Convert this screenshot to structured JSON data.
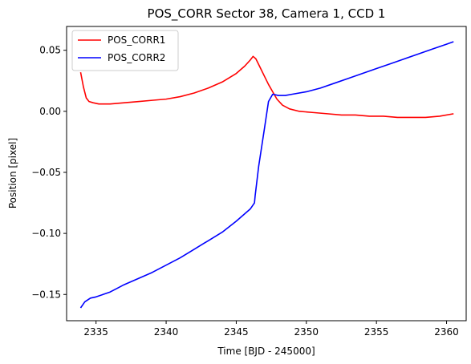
{
  "chart_data": {
    "type": "line",
    "title": "POS_CORR Sector 38, Camera 1, CCD 1",
    "xlabel": "Time [BJD - 245000]",
    "ylabel": "Position [pixel]",
    "xlim": [
      2332.9,
      2361.4
    ],
    "ylim": [
      -0.1715,
      0.0695
    ],
    "xticks": [
      2335,
      2340,
      2345,
      2350,
      2355,
      2360
    ],
    "yticks": [
      0.05,
      0.0,
      -0.05,
      -0.1,
      -0.15
    ],
    "ytick_labels": [
      "0.05",
      "0.00",
      "−0.05",
      "−0.10",
      "−0.15"
    ],
    "grid": false,
    "legend_position": "top-left",
    "series": [
      {
        "name": "POS_CORR1",
        "color": "#ff0000",
        "x": [
          2333.9,
          2334.1,
          2334.3,
          2334.5,
          2334.8,
          2335.2,
          2335.6,
          2336.0,
          2337.0,
          2338.0,
          2339.0,
          2340.0,
          2341.0,
          2342.0,
          2343.0,
          2344.0,
          2345.0,
          2345.6,
          2346.0,
          2346.2,
          2346.4,
          2346.7,
          2347.0,
          2347.3,
          2347.6,
          2347.9,
          2348.3,
          2348.8,
          2349.5,
          2350.5,
          2351.5,
          2352.5,
          2353.5,
          2354.5,
          2355.5,
          2356.5,
          2357.5,
          2358.5,
          2359.5,
          2360.5
        ],
        "y": [
          0.032,
          0.02,
          0.011,
          0.008,
          0.007,
          0.006,
          0.006,
          0.006,
          0.007,
          0.008,
          0.009,
          0.01,
          0.012,
          0.015,
          0.019,
          0.024,
          0.031,
          0.037,
          0.042,
          0.045,
          0.043,
          0.036,
          0.029,
          0.022,
          0.016,
          0.01,
          0.005,
          0.002,
          0.0,
          -0.001,
          -0.002,
          -0.003,
          -0.003,
          -0.004,
          -0.004,
          -0.005,
          -0.005,
          -0.005,
          -0.004,
          -0.002
        ]
      },
      {
        "name": "POS_CORR2",
        "color": "#0000ff",
        "x": [
          2333.9,
          2334.2,
          2334.6,
          2335.0,
          2335.5,
          2336.0,
          2336.5,
          2337.0,
          2338.0,
          2339.0,
          2340.0,
          2341.0,
          2342.0,
          2343.0,
          2344.0,
          2345.0,
          2346.0,
          2346.3,
          2346.35,
          2346.6,
          2347.0,
          2347.3,
          2347.6,
          2348.0,
          2348.5,
          2349.0,
          2350.0,
          2351.0,
          2352.0,
          2353.0,
          2354.0,
          2355.0,
          2356.0,
          2357.0,
          2358.0,
          2359.0,
          2360.0,
          2360.5
        ],
        "y": [
          -0.161,
          -0.156,
          -0.153,
          -0.152,
          -0.15,
          -0.148,
          -0.145,
          -0.142,
          -0.137,
          -0.132,
          -0.126,
          -0.12,
          -0.113,
          -0.106,
          -0.099,
          -0.09,
          -0.08,
          -0.075,
          -0.069,
          -0.045,
          -0.015,
          0.008,
          0.014,
          0.013,
          0.013,
          0.014,
          0.016,
          0.019,
          0.023,
          0.027,
          0.031,
          0.035,
          0.039,
          0.043,
          0.047,
          0.051,
          0.055,
          0.057
        ]
      }
    ]
  }
}
